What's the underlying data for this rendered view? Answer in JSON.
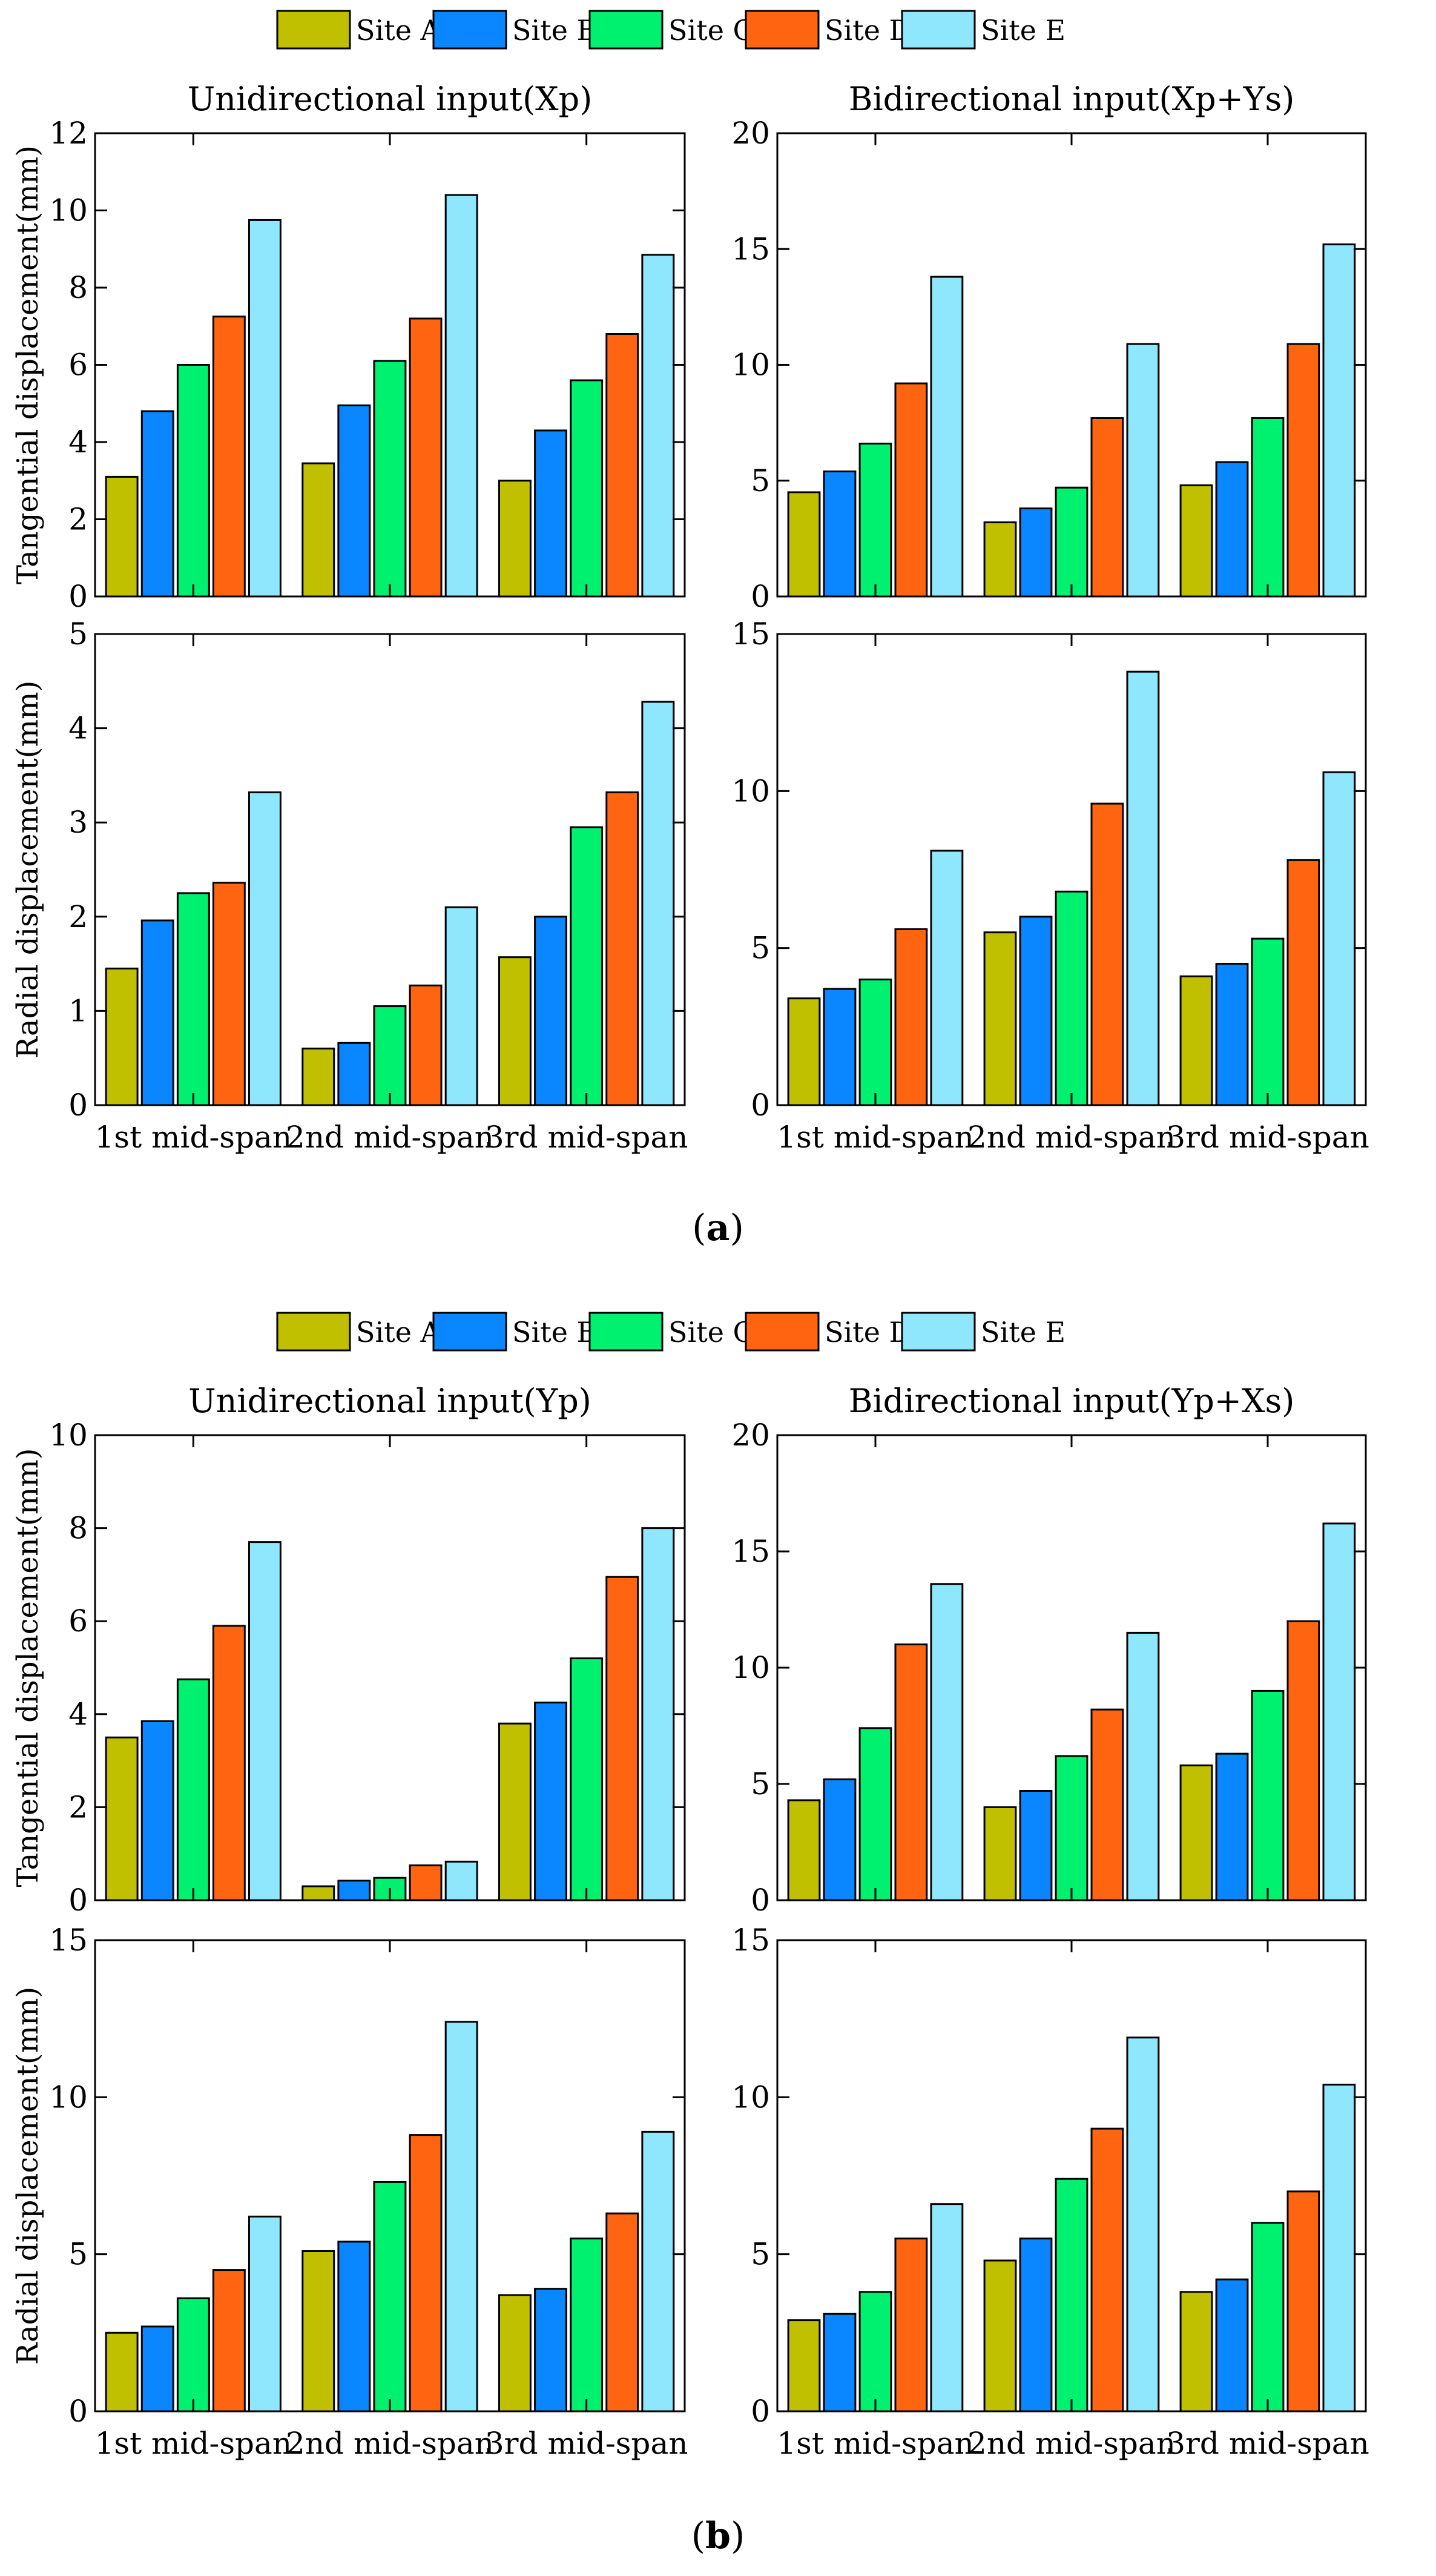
{
  "figure": {
    "legend": [
      "Site A",
      "Site B",
      "Site C",
      "Site D",
      "Site E"
    ],
    "colors": [
      "#c0bf00",
      "#0a86ff",
      "#00f06f",
      "#ff6410",
      "#8ee7fd"
    ],
    "captions": [
      {
        "open": "(",
        "letter": "a",
        "close": ")"
      },
      {
        "open": "(",
        "letter": "b",
        "close": ")"
      }
    ]
  },
  "chart_data": [
    {
      "type": "bar",
      "panel": "a",
      "title": "Unidirectional input(Xp)",
      "xlabel": "",
      "ylabel": "Tangential displacement(mm)",
      "categories": [
        "1st mid-span",
        "2nd mid-span",
        "3rd mid-span"
      ],
      "ylim": [
        0,
        12
      ],
      "yticks": [
        0,
        2,
        4,
        6,
        8,
        10,
        12
      ],
      "show_xticklabels": false,
      "series": [
        {
          "name": "Site A",
          "values": [
            3.1,
            3.45,
            3.0
          ]
        },
        {
          "name": "Site B",
          "values": [
            4.8,
            4.95,
            4.3
          ]
        },
        {
          "name": "Site C",
          "values": [
            6.0,
            6.1,
            5.6
          ]
        },
        {
          "name": "Site D",
          "values": [
            7.25,
            7.2,
            6.8
          ]
        },
        {
          "name": "Site E",
          "values": [
            9.75,
            10.4,
            8.85
          ]
        }
      ]
    },
    {
      "type": "bar",
      "panel": "a",
      "title": "Bidirectional input(Xp+Ys)",
      "xlabel": "",
      "ylabel": "",
      "categories": [
        "1st mid-span",
        "2nd mid-span",
        "3rd mid-span"
      ],
      "ylim": [
        0,
        20
      ],
      "yticks": [
        0,
        5,
        10,
        15,
        20
      ],
      "show_xticklabels": false,
      "series": [
        {
          "name": "Site A",
          "values": [
            4.5,
            3.2,
            4.8
          ]
        },
        {
          "name": "Site B",
          "values": [
            5.4,
            3.8,
            5.8
          ]
        },
        {
          "name": "Site C",
          "values": [
            6.6,
            4.7,
            7.7
          ]
        },
        {
          "name": "Site D",
          "values": [
            9.2,
            7.7,
            10.9
          ]
        },
        {
          "name": "Site E",
          "values": [
            13.8,
            10.9,
            15.2
          ]
        }
      ]
    },
    {
      "type": "bar",
      "panel": "a",
      "title": "",
      "xlabel": "",
      "ylabel": "Radial displacement(mm)",
      "categories": [
        "1st mid-span",
        "2nd mid-span",
        "3rd mid-span"
      ],
      "ylim": [
        0,
        5
      ],
      "yticks": [
        0,
        1,
        2,
        3,
        4,
        5
      ],
      "show_xticklabels": true,
      "series": [
        {
          "name": "Site A",
          "values": [
            1.45,
            0.6,
            1.57
          ]
        },
        {
          "name": "Site B",
          "values": [
            1.96,
            0.66,
            2.0
          ]
        },
        {
          "name": "Site C",
          "values": [
            2.25,
            1.05,
            2.95
          ]
        },
        {
          "name": "Site D",
          "values": [
            2.36,
            1.27,
            3.32
          ]
        },
        {
          "name": "Site E",
          "values": [
            3.32,
            2.1,
            4.28
          ]
        }
      ]
    },
    {
      "type": "bar",
      "panel": "a",
      "title": "",
      "xlabel": "",
      "ylabel": "",
      "categories": [
        "1st mid-span",
        "2nd mid-span",
        "3rd mid-span"
      ],
      "ylim": [
        0,
        15
      ],
      "yticks": [
        0,
        5,
        10,
        15
      ],
      "show_xticklabels": true,
      "series": [
        {
          "name": "Site A",
          "values": [
            3.4,
            5.5,
            4.1
          ]
        },
        {
          "name": "Site B",
          "values": [
            3.7,
            6.0,
            4.5
          ]
        },
        {
          "name": "Site C",
          "values": [
            4.0,
            6.8,
            5.3
          ]
        },
        {
          "name": "Site D",
          "values": [
            5.6,
            9.6,
            7.8
          ]
        },
        {
          "name": "Site E",
          "values": [
            8.1,
            13.8,
            10.6
          ]
        }
      ]
    },
    {
      "type": "bar",
      "panel": "b",
      "title": "Unidirectional input(Yp)",
      "xlabel": "",
      "ylabel": "Tangential displacement(mm)",
      "categories": [
        "1st mid-span",
        "2nd mid-span",
        "3rd mid-span"
      ],
      "ylim": [
        0,
        10
      ],
      "yticks": [
        0,
        2,
        4,
        6,
        8,
        10
      ],
      "show_xticklabels": false,
      "series": [
        {
          "name": "Site A",
          "values": [
            3.5,
            0.3,
            3.8
          ]
        },
        {
          "name": "Site B",
          "values": [
            3.85,
            0.42,
            4.25
          ]
        },
        {
          "name": "Site C",
          "values": [
            4.75,
            0.48,
            5.2
          ]
        },
        {
          "name": "Site D",
          "values": [
            5.9,
            0.75,
            6.95
          ]
        },
        {
          "name": "Site E",
          "values": [
            7.7,
            0.83,
            8.0
          ]
        }
      ]
    },
    {
      "type": "bar",
      "panel": "b",
      "title": "Bidirectional input(Yp+Xs)",
      "xlabel": "",
      "ylabel": "",
      "categories": [
        "1st mid-span",
        "2nd mid-span",
        "3rd mid-span"
      ],
      "ylim": [
        0,
        20
      ],
      "yticks": [
        0,
        5,
        10,
        15,
        20
      ],
      "show_xticklabels": false,
      "series": [
        {
          "name": "Site A",
          "values": [
            4.3,
            4.0,
            5.8
          ]
        },
        {
          "name": "Site B",
          "values": [
            5.2,
            4.7,
            6.3
          ]
        },
        {
          "name": "Site C",
          "values": [
            7.4,
            6.2,
            9.0
          ]
        },
        {
          "name": "Site D",
          "values": [
            11.0,
            8.2,
            12.0
          ]
        },
        {
          "name": "Site E",
          "values": [
            13.6,
            11.5,
            16.2
          ]
        }
      ]
    },
    {
      "type": "bar",
      "panel": "b",
      "title": "",
      "xlabel": "",
      "ylabel": "Radial displacement(mm)",
      "categories": [
        "1st mid-span",
        "2nd mid-span",
        "3rd mid-span"
      ],
      "ylim": [
        0,
        15
      ],
      "yticks": [
        0,
        5,
        10,
        15
      ],
      "show_xticklabels": true,
      "series": [
        {
          "name": "Site A",
          "values": [
            2.5,
            5.1,
            3.7
          ]
        },
        {
          "name": "Site B",
          "values": [
            2.7,
            5.4,
            3.9
          ]
        },
        {
          "name": "Site C",
          "values": [
            3.6,
            7.3,
            5.5
          ]
        },
        {
          "name": "Site D",
          "values": [
            4.5,
            8.8,
            6.3
          ]
        },
        {
          "name": "Site E",
          "values": [
            6.2,
            12.4,
            8.9
          ]
        }
      ]
    },
    {
      "type": "bar",
      "panel": "b",
      "title": "",
      "xlabel": "",
      "ylabel": "",
      "categories": [
        "1st mid-span",
        "2nd mid-span",
        "3rd mid-span"
      ],
      "ylim": [
        0,
        15
      ],
      "yticks": [
        0,
        5,
        10,
        15
      ],
      "show_xticklabels": true,
      "series": [
        {
          "name": "Site A",
          "values": [
            2.9,
            4.8,
            3.8
          ]
        },
        {
          "name": "Site B",
          "values": [
            3.1,
            5.5,
            4.2
          ]
        },
        {
          "name": "Site C",
          "values": [
            3.8,
            7.4,
            6.0
          ]
        },
        {
          "name": "Site D",
          "values": [
            5.5,
            9.0,
            7.0
          ]
        },
        {
          "name": "Site E",
          "values": [
            6.6,
            11.9,
            10.4
          ]
        }
      ]
    }
  ]
}
